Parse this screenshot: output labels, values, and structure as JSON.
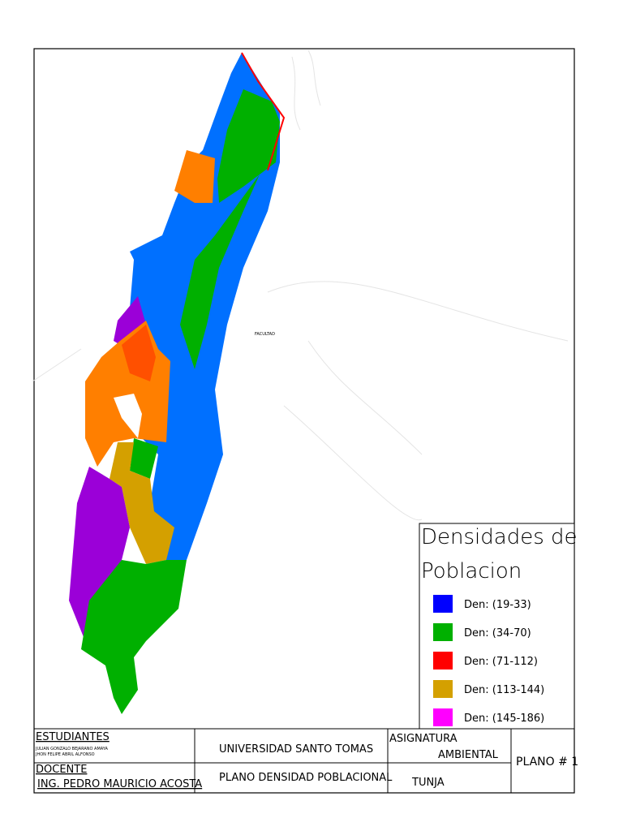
{
  "map": {
    "label": "FACULTAD"
  },
  "legend": {
    "title_line1": "Densidades de",
    "title_line2": "Poblacion",
    "items": [
      {
        "label": "Den: (19-33)",
        "color": "#0000ff"
      },
      {
        "label": "Den: (34-70)",
        "color": "#00b000"
      },
      {
        "label": "Den: (71-112)",
        "color": "#ff0000"
      },
      {
        "label": "Den: (113-144)",
        "color": "#d4a000"
      },
      {
        "label": "Den: (145-186)",
        "color": "#ff00ff"
      }
    ]
  },
  "title_block": {
    "students_heading": "ESTUDIANTES",
    "students": [
      "JULIAN GONZALO BEJARANO AMAYA",
      "JHON FELIPE ABRIL ALFONSO"
    ],
    "teacher_heading": "DOCENTE",
    "teacher": "ING. PEDRO MAURICIO ACOSTA",
    "university": "UNIVERSIDAD SANTO TOMAS",
    "plan_name": "PLANO DENSIDAD POBLACIONAL",
    "subject_heading": "ASIGNATURA",
    "subject": "AMBIENTAL",
    "city": "TUNJA",
    "plan_number": "PLANO # 1"
  }
}
